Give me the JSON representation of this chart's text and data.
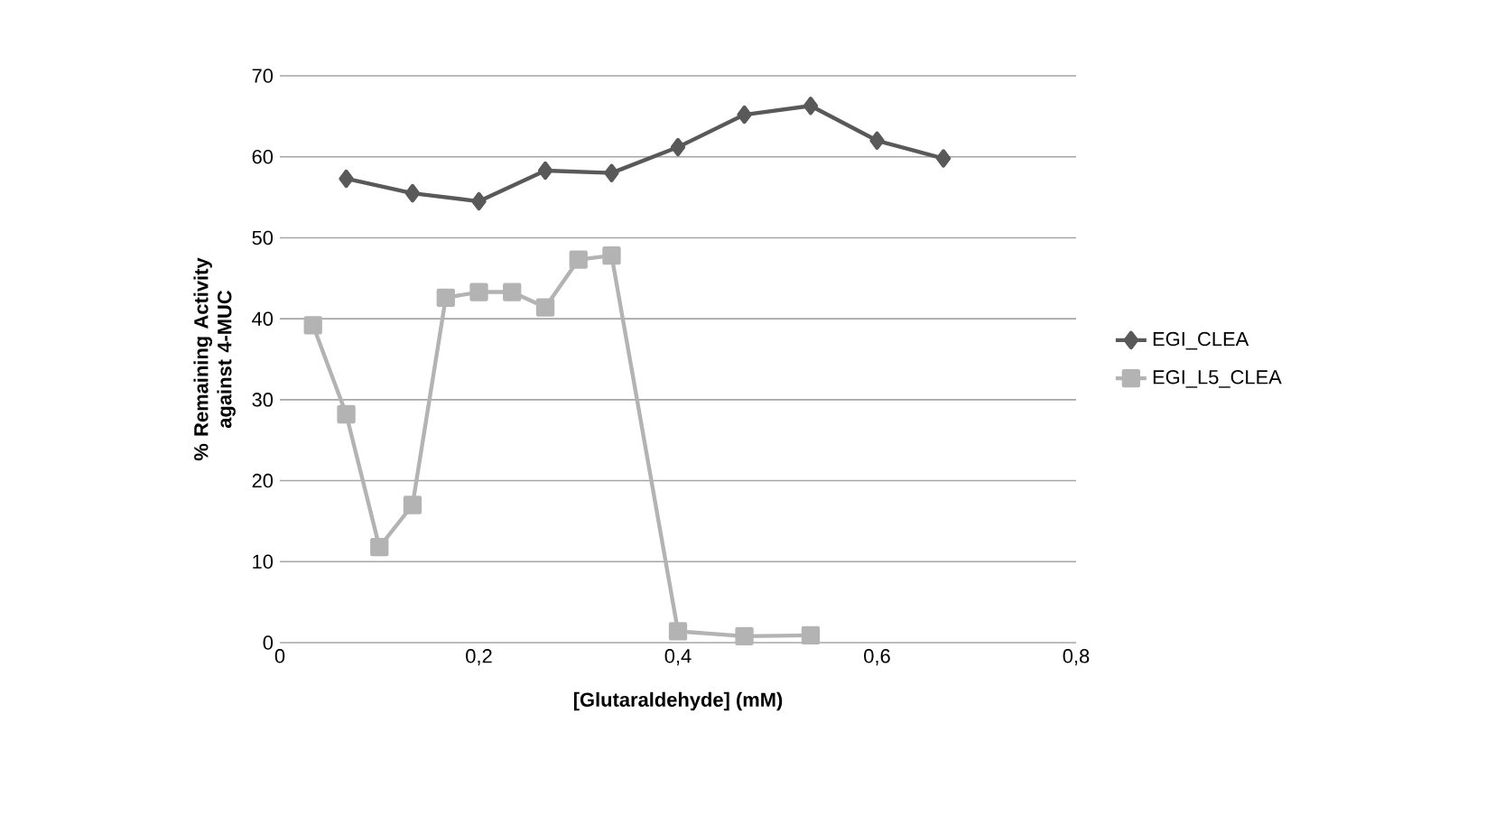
{
  "chart_data": {
    "type": "line",
    "xlabel": "[Glutaraldehyde] (mM)",
    "ylabel": "% Remaining Activity against 4-MUC",
    "xlim": [
      0,
      0.8
    ],
    "xticks": [
      0,
      {
        "value": 0.2,
        "label": "0,2"
      },
      {
        "value": 0.4,
        "label": "0,4"
      },
      {
        "value": 0.6,
        "label": "0,6"
      },
      {
        "value": 0.8,
        "label": "0,8"
      }
    ],
    "ylim": [
      0,
      70
    ],
    "yticks": [
      0,
      10,
      20,
      30,
      40,
      50,
      60,
      70
    ],
    "grid": "y",
    "legend": "right",
    "line_style": "solid",
    "series": [
      {
        "name": "EGI_CLEA",
        "color": "#595959",
        "marker": "diamond",
        "x": [
          0.0667,
          0.1333,
          0.2,
          0.2667,
          0.3333,
          0.4,
          0.4667,
          0.5333,
          0.6,
          0.6667
        ],
        "values": [
          57.3,
          55.5,
          54.5,
          58.3,
          58,
          61.2,
          65.2,
          66.3,
          62,
          59.8
        ]
      },
      {
        "name": "EGI_L5_CLEA",
        "color": "#b3b3b3",
        "marker": "square",
        "x": [
          0.0333,
          0.0667,
          0.1,
          0.1333,
          0.1667,
          0.2,
          0.2333,
          0.2667,
          0.3,
          0.3333,
          0.4,
          0.4667,
          0.5333
        ],
        "values": [
          39.2,
          28.2,
          11.8,
          17,
          42.6,
          43.3,
          43.3,
          41.4,
          47.3,
          47.8,
          1.4,
          0.8,
          0.9
        ]
      }
    ]
  }
}
